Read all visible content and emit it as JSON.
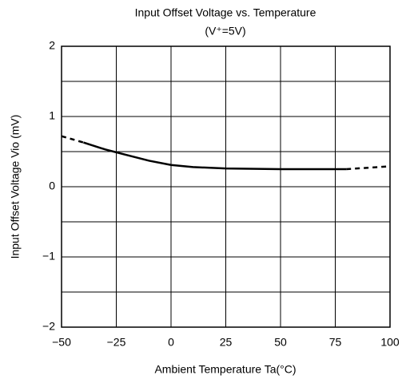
{
  "chart_data": {
    "type": "line",
    "title": "Input Offset Voltage vs. Temperature",
    "subtitle": "(V⁺=5V)",
    "x_label": "Ambient Temperature Ta(°C)",
    "y_label": "Input Offset Voltage Vio (mV)",
    "color": "#000000",
    "series": [
      {
        "style": "dashed",
        "x": [
          -50,
          -40
        ],
        "values": [
          0.72,
          0.63
        ]
      },
      {
        "style": "solid",
        "x": [
          -40,
          -30,
          -25,
          -20,
          -10,
          0,
          10,
          25,
          50,
          75,
          80
        ],
        "values": [
          0.63,
          0.53,
          0.49,
          0.45,
          0.37,
          0.31,
          0.28,
          0.26,
          0.25,
          0.25,
          0.25
        ]
      },
      {
        "style": "dashed",
        "x": [
          80,
          90,
          100
        ],
        "values": [
          0.25,
          0.27,
          0.29
        ]
      }
    ],
    "xlim": [
      -50,
      100
    ],
    "xticks": [
      {
        "value": -50,
        "label": "−50"
      },
      {
        "value": -25,
        "label": "−25"
      },
      0,
      25,
      50,
      75,
      100
    ],
    "ylim": [
      -2,
      2
    ],
    "yticks": [
      {
        "value": -2,
        "label": "−2"
      },
      {
        "value": -1,
        "label": "−1"
      },
      0,
      1,
      2
    ],
    "yminorticks": [
      -1.5,
      -0.5,
      0.5,
      1.5
    ],
    "grid": true
  }
}
